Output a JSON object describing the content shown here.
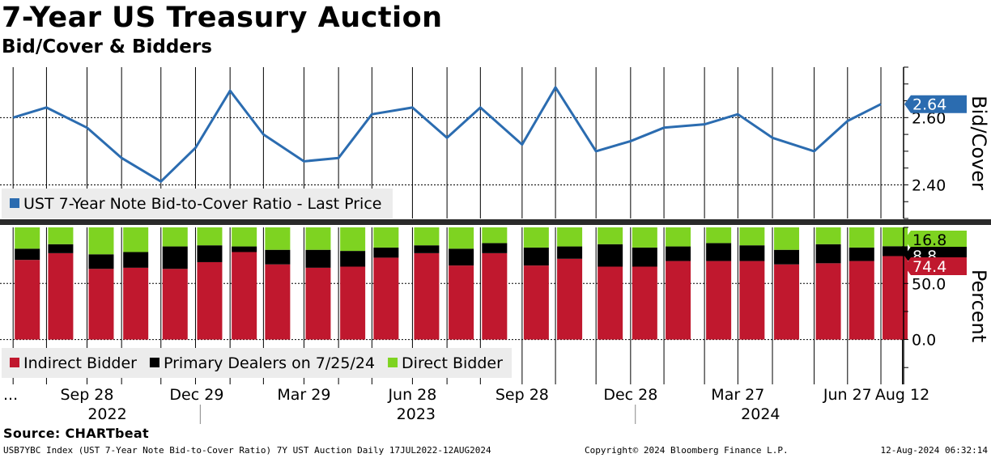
{
  "header": {
    "title": "7-Year US Treasury Auction",
    "subtitle": "Bid/Cover & Bidders"
  },
  "chart_data": [
    {
      "type": "line",
      "ylabel": "Bid/Cover",
      "ylim": [
        2.3,
        2.75
      ],
      "yticks": [
        2.4,
        2.6
      ],
      "ytick_labels": [
        "2.40",
        "2.60"
      ],
      "grid": true,
      "legend_placement": "bottom-left",
      "series": [
        {
          "name": "UST 7-Year Note Bid-to-Cover Ratio - Last Price",
          "color": "#2b6cb0",
          "x": [
            "2022-07-28",
            "2022-08-25",
            "2022-09-28",
            "2022-10-27",
            "2022-11-29",
            "2022-12-28",
            "2023-01-26",
            "2023-02-23",
            "2023-03-29",
            "2023-04-27",
            "2023-05-25",
            "2023-06-28",
            "2023-07-27",
            "2023-08-24",
            "2023-09-28",
            "2023-10-26",
            "2023-11-29",
            "2023-12-28",
            "2024-01-25",
            "2024-02-28",
            "2024-03-27",
            "2024-04-25",
            "2024-05-30",
            "2024-06-27",
            "2024-07-25"
          ],
          "values": [
            2.6,
            2.63,
            2.57,
            2.48,
            2.41,
            2.51,
            2.68,
            2.55,
            2.47,
            2.48,
            2.61,
            2.63,
            2.54,
            2.63,
            2.52,
            2.69,
            2.5,
            2.53,
            2.57,
            2.58,
            2.61,
            2.54,
            2.5,
            2.59,
            2.64
          ]
        }
      ],
      "last_value_label": "2.64",
      "last_value_color": "#2b6cb0"
    },
    {
      "type": "bar",
      "stacked": true,
      "ylabel": "Percent",
      "ylim": [
        -40,
        100
      ],
      "yticks": [
        0,
        50
      ],
      "ytick_labels": [
        "0.0",
        "50.0"
      ],
      "grid": true,
      "legend_placement": "bottom-left",
      "categories": [
        "2022-07-28",
        "2022-08-25",
        "2022-09-28",
        "2022-10-27",
        "2022-11-29",
        "2022-12-28",
        "2023-01-26",
        "2023-02-23",
        "2023-03-29",
        "2023-04-27",
        "2023-05-25",
        "2023-06-28",
        "2023-07-27",
        "2023-08-24",
        "2023-09-28",
        "2023-10-26",
        "2023-11-29",
        "2023-12-28",
        "2024-01-25",
        "2024-02-28",
        "2024-03-27",
        "2024-04-25",
        "2024-05-30",
        "2024-06-27",
        "2024-07-25"
      ],
      "series": [
        {
          "name": "Indirect Bidder",
          "color": "#c0182e",
          "values": [
            71,
            77,
            63,
            64,
            63,
            69,
            78,
            67,
            64,
            65,
            73,
            77,
            66,
            77,
            66,
            72,
            65,
            65,
            70,
            70,
            70,
            67,
            68,
            70,
            74.4
          ]
        },
        {
          "name": "Primary Dealers on 7/25/24",
          "color": "#000000",
          "values": [
            10,
            8,
            13,
            14,
            20,
            15,
            5,
            13,
            16,
            14,
            9,
            7,
            15,
            9,
            16,
            11,
            20,
            17,
            13,
            16,
            14,
            13,
            17,
            12,
            8.8
          ]
        },
        {
          "name": "Direct Bidder",
          "color": "#7ed321",
          "values": [
            19,
            15,
            24,
            22,
            17,
            16,
            17,
            20,
            20,
            21,
            18,
            16,
            19,
            14,
            18,
            17,
            15,
            18,
            17,
            14,
            16,
            20,
            15,
            18,
            16.8
          ]
        }
      ],
      "last_value_labels": [
        {
          "label": "16.8",
          "color": "#7ed321"
        },
        {
          "label": "8.8",
          "color": "#000000"
        },
        {
          "label": "74.4",
          "color": "#c0182e"
        }
      ]
    }
  ],
  "x_axis": {
    "month_labels": [
      {
        "date": "2022-07-28",
        "label": "..."
      },
      {
        "date": "2022-09-28",
        "label": "Sep 28"
      },
      {
        "date": "2022-12-29",
        "label": "Dec 29"
      },
      {
        "date": "2023-03-29",
        "label": "Mar 29"
      },
      {
        "date": "2023-06-28",
        "label": "Jun 28"
      },
      {
        "date": "2023-09-28",
        "label": "Sep 28"
      },
      {
        "date": "2023-12-28",
        "label": "Dec 28"
      },
      {
        "date": "2024-03-27",
        "label": "Mar 27"
      },
      {
        "date": "2024-06-27",
        "label": "Jun 27"
      },
      {
        "date": "2024-08-12",
        "label": "Aug 12"
      }
    ],
    "year_labels": [
      {
        "date": "2022-10-15",
        "label": "2022"
      },
      {
        "date": "2023-07-01",
        "label": "2023"
      },
      {
        "date": "2024-04-15",
        "label": "2024"
      }
    ],
    "year_separators": [
      "2023-01-01",
      "2024-01-01"
    ]
  },
  "footer": {
    "source": "Source: CHARTbeat",
    "index_info": "USB7YBC Index (UST 7-Year Note Bid-to-Cover Ratio) 7Y UST Auction  Daily 17JUL2022-12AUG2024",
    "copyright": "Copyright© 2024 Bloomberg Finance L.P.",
    "timestamp": "12-Aug-2024 06:32:14"
  }
}
